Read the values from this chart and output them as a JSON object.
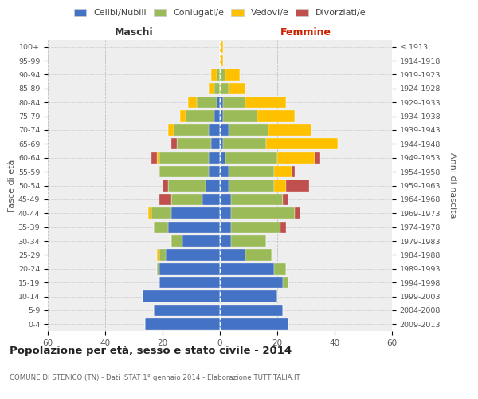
{
  "age_groups": [
    "0-4",
    "5-9",
    "10-14",
    "15-19",
    "20-24",
    "25-29",
    "30-34",
    "35-39",
    "40-44",
    "45-49",
    "50-54",
    "55-59",
    "60-64",
    "65-69",
    "70-74",
    "75-79",
    "80-84",
    "85-89",
    "90-94",
    "95-99",
    "100+"
  ],
  "birth_years": [
    "2009-2013",
    "2004-2008",
    "1999-2003",
    "1994-1998",
    "1989-1993",
    "1984-1988",
    "1979-1983",
    "1974-1978",
    "1969-1973",
    "1964-1968",
    "1959-1963",
    "1954-1958",
    "1949-1953",
    "1944-1948",
    "1939-1943",
    "1934-1938",
    "1929-1933",
    "1924-1928",
    "1919-1923",
    "1914-1918",
    "≤ 1913"
  ],
  "colors": {
    "celibe": "#4472C4",
    "coniugato": "#9BBB59",
    "vedovo": "#FFC000",
    "divorziato": "#C0504D"
  },
  "maschi": {
    "celibe": [
      26,
      23,
      27,
      21,
      21,
      19,
      13,
      18,
      17,
      6,
      5,
      4,
      4,
      3,
      4,
      2,
      1,
      0,
      0,
      0,
      0
    ],
    "coniugato": [
      0,
      0,
      0,
      0,
      1,
      2,
      4,
      5,
      7,
      11,
      13,
      17,
      17,
      12,
      12,
      10,
      7,
      2,
      1,
      0,
      0
    ],
    "vedovo": [
      0,
      0,
      0,
      0,
      0,
      1,
      0,
      0,
      1,
      0,
      0,
      0,
      1,
      0,
      2,
      2,
      3,
      2,
      2,
      0,
      0
    ],
    "divorziato": [
      0,
      0,
      0,
      0,
      0,
      0,
      0,
      0,
      0,
      4,
      2,
      0,
      2,
      2,
      0,
      0,
      0,
      0,
      0,
      0,
      0
    ]
  },
  "femmine": {
    "celibe": [
      24,
      22,
      20,
      22,
      19,
      9,
      4,
      4,
      4,
      4,
      3,
      3,
      2,
      1,
      3,
      1,
      1,
      0,
      0,
      0,
      0
    ],
    "coniugato": [
      0,
      0,
      0,
      2,
      4,
      9,
      12,
      17,
      22,
      18,
      16,
      16,
      18,
      15,
      14,
      12,
      8,
      3,
      2,
      0,
      0
    ],
    "vedovo": [
      0,
      0,
      0,
      0,
      0,
      0,
      0,
      0,
      0,
      0,
      4,
      6,
      13,
      25,
      15,
      13,
      14,
      6,
      5,
      1,
      1
    ],
    "divorziato": [
      0,
      0,
      0,
      0,
      0,
      0,
      0,
      2,
      2,
      2,
      8,
      1,
      2,
      0,
      0,
      0,
      0,
      0,
      0,
      0,
      0
    ]
  },
  "title": "Popolazione per età, sesso e stato civile - 2014",
  "subtitle": "COMUNE DI STENICO (TN) - Dati ISTAT 1° gennaio 2014 - Elaborazione TUTTITALIA.IT",
  "xlabel_left": "Maschi",
  "xlabel_right": "Femmine",
  "ylabel_left": "Fasce di età",
  "ylabel_right": "Anni di nascita",
  "xlim": 60,
  "bg_color": "#ffffff",
  "plot_bg": "#eeeeee",
  "grid_color": "#bbbbbb",
  "legend_labels": [
    "Celibi/Nubili",
    "Coniugati/e",
    "Vedovi/e",
    "Divorziati/e"
  ]
}
